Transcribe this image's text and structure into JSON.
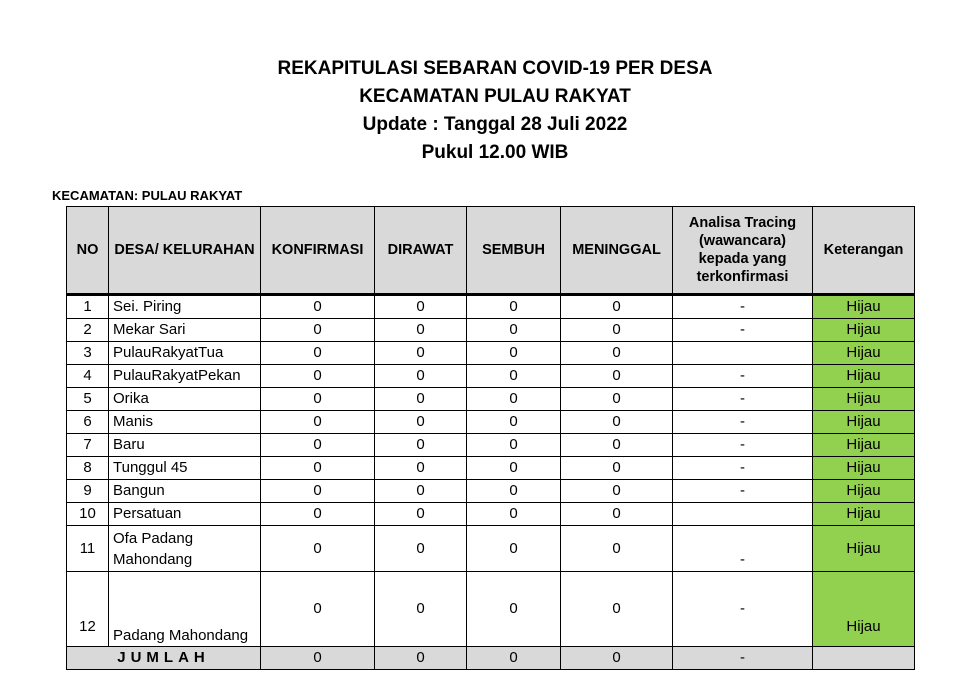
{
  "title": {
    "line1": "REKAPITULASI SEBARAN COVID-19 PER DESA",
    "line2": "KECAMATAN PULAU RAKYAT",
    "line3": "Update : Tanggal 28 Juli 2022",
    "line4": "Pukul 12.00 WIB"
  },
  "subtitle": "KECAMATAN: PULAU RAKYAT",
  "colors": {
    "header": "#d9d9d9",
    "hijau": "#92d050"
  },
  "headers": [
    "NO",
    "DESA/ KELURAHAN",
    "KONFIRMASI",
    "DIRAWAT",
    "SEMBUH",
    "MENINGGAL",
    "Analisa Tracing (wawancara) kepada yang terkonfirmasi",
    "Keterangan"
  ],
  "rows": [
    [
      "1",
      "Sei. Piring",
      "0",
      "0",
      "0",
      "0",
      "-",
      "Hijau"
    ],
    [
      "2",
      "Mekar Sari",
      "0",
      "0",
      "0",
      "0",
      "-",
      "Hijau"
    ],
    [
      "3",
      "PulauRakyatTua",
      "0",
      "0",
      "0",
      "0",
      "",
      "Hijau"
    ],
    [
      "4",
      "PulauRakyatPekan",
      "0",
      "0",
      "0",
      "0",
      "-",
      "Hijau"
    ],
    [
      "5",
      "Orika",
      "0",
      "0",
      "0",
      "0",
      "-",
      "Hijau"
    ],
    [
      "6",
      "Manis",
      "0",
      "0",
      "0",
      "0",
      "-",
      "Hijau"
    ],
    [
      "7",
      "Baru",
      "0",
      "0",
      "0",
      "0",
      "-",
      "Hijau"
    ],
    [
      "8",
      "Tunggul 45",
      "0",
      "0",
      "0",
      "0",
      "-",
      "Hijau"
    ],
    [
      "9",
      "Bangun",
      "0",
      "0",
      "0",
      "0",
      "-",
      "Hijau"
    ],
    [
      "10",
      "Persatuan",
      "0",
      "0",
      "0",
      "0",
      "",
      "Hijau"
    ],
    [
      "11",
      "Ofa Padang Mahondang",
      "0",
      "0",
      "0",
      "0",
      "-",
      "Hijau"
    ],
    [
      "12",
      "Padang Mahondang",
      "0",
      "0",
      "0",
      "0",
      "-",
      "Hijau"
    ]
  ],
  "total": {
    "label": "JUMLAH",
    "values": [
      "0",
      "0",
      "0",
      "0",
      "-"
    ]
  }
}
